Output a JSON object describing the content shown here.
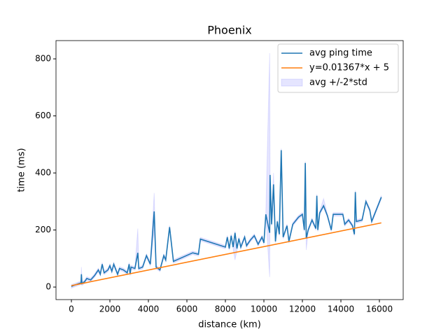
{
  "chart_data": {
    "type": "line",
    "title": "Phoenix",
    "x_label": "distance (km)",
    "y_label": "time (ms)",
    "xlim": [
      -800,
      17236
    ],
    "ylim": [
      -44,
      864
    ],
    "xticks": [
      0,
      2000,
      4000,
      6000,
      8000,
      10000,
      12000,
      14000,
      16000
    ],
    "yticks": [
      0,
      200,
      400,
      600,
      800
    ],
    "legend": "upper right",
    "x": [
      0,
      100,
      300,
      500,
      520,
      550,
      700,
      800,
      1000,
      1200,
      1400,
      1500,
      1600,
      1700,
      1900,
      2000,
      2100,
      2200,
      2400,
      2500,
      2700,
      2900,
      3000,
      3050,
      3100,
      3300,
      3450,
      3500,
      3700,
      3900,
      4100,
      4300,
      4400,
      4600,
      4800,
      4900,
      5100,
      5300,
      6300,
      6600,
      6700,
      8000,
      8100,
      8200,
      8300,
      8400,
      8500,
      8600,
      8700,
      8800,
      9000,
      9100,
      9300,
      9500,
      9700,
      9900,
      10000,
      10100,
      10300,
      10320,
      10400,
      10500,
      10600,
      10700,
      10800,
      10900,
      11000,
      11200,
      11300,
      11500,
      11800,
      12000,
      12100,
      12150,
      12200,
      12300,
      12500,
      12700,
      12750,
      12800,
      12900,
      13100,
      13300,
      13500,
      13600,
      14100,
      14200,
      14400,
      14600,
      14700,
      14750,
      14800,
      15100,
      15300,
      15500,
      15600,
      16100
    ],
    "series": [
      {
        "name": "avg ping time",
        "color": "#1f77b4",
        "values": [
          2,
          5,
          10,
          15,
          45,
          12,
          20,
          30,
          25,
          40,
          60,
          45,
          80,
          50,
          60,
          75,
          55,
          80,
          45,
          65,
          60,
          50,
          80,
          45,
          70,
          65,
          120,
          65,
          70,
          110,
          80,
          265,
          70,
          60,
          110,
          95,
          210,
          90,
          120,
          115,
          168,
          140,
          175,
          135,
          180,
          140,
          190,
          135,
          170,
          140,
          175,
          145,
          165,
          180,
          150,
          175,
          155,
          255,
          190,
          393,
          220,
          360,
          160,
          230,
          185,
          480,
          175,
          215,
          160,
          220,
          245,
          255,
          200,
          435,
          170,
          200,
          235,
          205,
          320,
          200,
          260,
          285,
          250,
          200,
          255,
          255,
          220,
          235,
          215,
          185,
          333,
          230,
          235,
          300,
          270,
          230,
          315
        ]
      },
      {
        "name": "y=0.01367*x + 5",
        "color": "#ff7f0e",
        "x": [
          0,
          16100
        ],
        "values": [
          5,
          225.09
        ]
      }
    ],
    "band": {
      "name": "avg +/-2*std",
      "color": "#0000ff",
      "alpha": 0.1,
      "upper": [
        8,
        11,
        16,
        21,
        70,
        18,
        26,
        36,
        31,
        46,
        66,
        51,
        86,
        56,
        66,
        81,
        61,
        86,
        51,
        71,
        66,
        56,
        86,
        51,
        76,
        71,
        205,
        71,
        76,
        116,
        86,
        330,
        76,
        66,
        116,
        101,
        216,
        96,
        126,
        121,
        174,
        146,
        181,
        141,
        186,
        146,
        196,
        141,
        176,
        146,
        181,
        151,
        171,
        186,
        156,
        181,
        161,
        261,
        820,
        399,
        226,
        400,
        166,
        236,
        191,
        486,
        181,
        221,
        166,
        226,
        251,
        261,
        206,
        441,
        176,
        206,
        241,
        211,
        326,
        206,
        266,
        310,
        256,
        206,
        261,
        261,
        226,
        241,
        221,
        191,
        339,
        236,
        241,
        306,
        276,
        236,
        321
      ],
      "lower": [
        -4,
        -1,
        4,
        9,
        39,
        6,
        14,
        24,
        19,
        34,
        54,
        39,
        74,
        44,
        54,
        69,
        49,
        74,
        39,
        59,
        54,
        44,
        74,
        39,
        64,
        59,
        114,
        59,
        64,
        104,
        74,
        200,
        64,
        54,
        104,
        89,
        204,
        84,
        114,
        109,
        162,
        134,
        169,
        129,
        174,
        134,
        95,
        129,
        164,
        134,
        169,
        139,
        159,
        174,
        144,
        169,
        149,
        249,
        35,
        387,
        214,
        320,
        154,
        224,
        179,
        474,
        169,
        209,
        154,
        214,
        239,
        249,
        194,
        429,
        130,
        194,
        229,
        199,
        314,
        194,
        254,
        279,
        244,
        194,
        249,
        249,
        214,
        229,
        209,
        179,
        327,
        224,
        229,
        294,
        264,
        224,
        309
      ]
    }
  }
}
